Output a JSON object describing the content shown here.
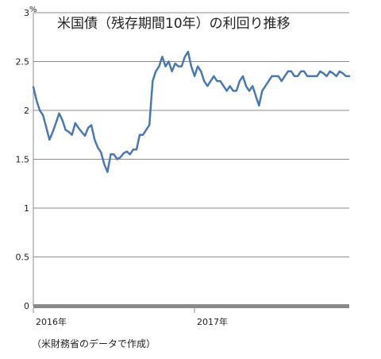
{
  "chart_data": {
    "type": "line",
    "title": "米国債（残存期間10年）の利回り推移",
    "unit": "%",
    "source": "（米財務省のデータで作成）",
    "ylim": [
      0,
      3
    ],
    "yticks": [
      "0",
      "0.5",
      "1",
      "1.5",
      "2",
      "2.5",
      "3"
    ],
    "xlim": [
      2016.0,
      2017.96
    ],
    "xticks": [
      {
        "value": 2016.0,
        "label": "2016年"
      },
      {
        "value": 2017.0,
        "label": "2017年"
      }
    ],
    "grid": true,
    "line_color": "#4a78b0",
    "series": [
      {
        "x": [
          2016.0,
          2016.02,
          2016.04,
          2016.06,
          2016.08,
          2016.1,
          2016.12,
          2016.14,
          2016.16,
          2016.18,
          2016.2,
          2016.22,
          2016.24,
          2016.26,
          2016.28,
          2016.3,
          2016.32,
          2016.34,
          2016.36,
          2016.38,
          2016.4,
          2016.42,
          2016.44,
          2016.46,
          2016.48,
          2016.5,
          2016.52,
          2016.54,
          2016.56,
          2016.58,
          2016.6,
          2016.62,
          2016.64,
          2016.66,
          2016.68,
          2016.7,
          2016.72,
          2016.74,
          2016.76,
          2016.78,
          2016.8,
          2016.82,
          2016.84,
          2016.86,
          2016.88,
          2016.9,
          2016.92,
          2016.94,
          2016.96,
          2016.98,
          2017.0,
          2017.02,
          2017.04,
          2017.06,
          2017.08,
          2017.1,
          2017.12,
          2017.14,
          2017.16,
          2017.18,
          2017.2,
          2017.22,
          2017.24,
          2017.26,
          2017.28,
          2017.3,
          2017.32,
          2017.34,
          2017.36,
          2017.38,
          2017.4,
          2017.42,
          2017.44,
          2017.46,
          2017.48,
          2017.5,
          2017.52,
          2017.54,
          2017.56,
          2017.58,
          2017.6,
          2017.62,
          2017.64,
          2017.66,
          2017.68,
          2017.7,
          2017.72,
          2017.74,
          2017.76,
          2017.78,
          2017.8,
          2017.82,
          2017.84,
          2017.86,
          2017.88,
          2017.9,
          2017.92,
          2017.94,
          2017.96
        ],
        "values": [
          2.24,
          2.1,
          2.0,
          1.95,
          1.83,
          1.7,
          1.78,
          1.87,
          1.97,
          1.9,
          1.8,
          1.78,
          1.75,
          1.87,
          1.82,
          1.78,
          1.74,
          1.82,
          1.85,
          1.7,
          1.62,
          1.57,
          1.45,
          1.37,
          1.55,
          1.55,
          1.5,
          1.52,
          1.56,
          1.58,
          1.55,
          1.6,
          1.6,
          1.75,
          1.75,
          1.8,
          1.85,
          2.3,
          2.4,
          2.45,
          2.55,
          2.45,
          2.5,
          2.4,
          2.48,
          2.45,
          2.45,
          2.55,
          2.6,
          2.45,
          2.35,
          2.45,
          2.4,
          2.3,
          2.25,
          2.3,
          2.35,
          2.3,
          2.3,
          2.25,
          2.2,
          2.25,
          2.2,
          2.2,
          2.3,
          2.35,
          2.25,
          2.2,
          2.25,
          2.15,
          2.05,
          2.2,
          2.25,
          2.3,
          2.35,
          2.35,
          2.35,
          2.3,
          2.35,
          2.4,
          2.4,
          2.35,
          2.35,
          2.4,
          2.4,
          2.35,
          2.35,
          2.35,
          2.35,
          2.4,
          2.38,
          2.35,
          2.4,
          2.38,
          2.35,
          2.4,
          2.38,
          2.35,
          2.35
        ]
      }
    ]
  }
}
